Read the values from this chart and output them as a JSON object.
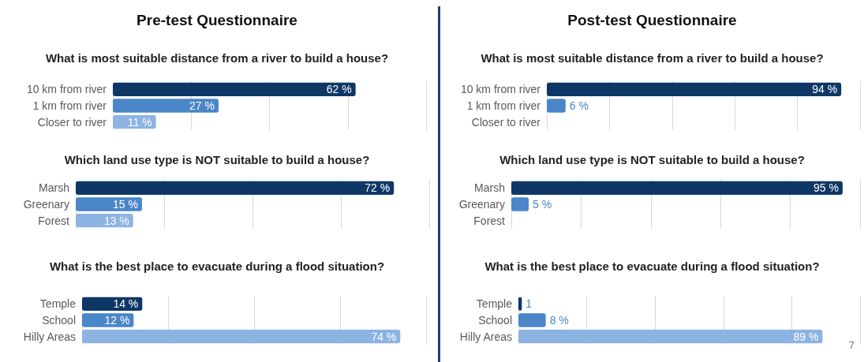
{
  "chart_data": [
    {
      "type": "bar",
      "orientation": "horizontal",
      "title": "Pre-test Questionnaire",
      "subtitle": "What is most suitable distance from a river to build a house?",
      "categories": [
        "10 km from river",
        "1 km from river",
        "Closer to river"
      ],
      "values": [
        62,
        27,
        11
      ],
      "colors": [
        "#0e3766",
        "#4a86c8",
        "#8cb3e2"
      ],
      "value_labels": [
        "62 %",
        "27 %",
        "11 %"
      ],
      "xlim": [
        0,
        80
      ],
      "xticks": [
        {
          "value": 0,
          "label": null
        },
        {
          "value": 20,
          "label": null
        },
        {
          "value": 40,
          "label": null
        },
        {
          "value": 60,
          "label": null
        },
        {
          "value": 80,
          "label": null
        }
      ],
      "grid": "x",
      "tick_labels": "y"
    },
    {
      "type": "bar",
      "orientation": "horizontal",
      "subtitle": "Which land use type is NOT suitable to build a house?",
      "categories": [
        "Marsh",
        "Greenary",
        "Forest"
      ],
      "values": [
        72,
        15,
        13
      ],
      "colors": [
        "#0e3766",
        "#4a86c8",
        "#8cb3e2"
      ],
      "value_labels": [
        "72 %",
        "15 %",
        "13 %"
      ],
      "xlim": [
        0,
        80
      ],
      "xticks": [
        {
          "value": 0,
          "label": null
        },
        {
          "value": 20,
          "label": null
        },
        {
          "value": 40,
          "label": null
        },
        {
          "value": 60,
          "label": null
        },
        {
          "value": 80,
          "label": null
        }
      ],
      "grid": "x",
      "tick_labels": "y"
    },
    {
      "type": "bar",
      "orientation": "horizontal",
      "subtitle": "What is the best place to evacuate during a flood situation?",
      "categories": [
        "Temple",
        "School",
        "Hilly Areas"
      ],
      "values": [
        14,
        12,
        74
      ],
      "colors": [
        "#0e3766",
        "#4a86c8",
        "#8cb3e2"
      ],
      "value_labels": [
        "14 %",
        "12 %",
        "74 %"
      ],
      "xlim": [
        0,
        80
      ],
      "xticks": [
        {
          "value": 0,
          "label": null
        },
        {
          "value": 20,
          "label": null
        },
        {
          "value": 40,
          "label": null
        },
        {
          "value": 60,
          "label": null
        },
        {
          "value": 80,
          "label": null
        }
      ],
      "grid": "x",
      "tick_labels": "y"
    },
    {
      "type": "bar",
      "orientation": "horizontal",
      "title": "Post-test Questionnaire",
      "subtitle": "What is most suitable distance from a river to build a house?",
      "categories": [
        "10 km from river",
        "1 km from river",
        "Closer to river"
      ],
      "values": [
        94,
        6,
        0
      ],
      "colors": [
        "#0e3766",
        "#4a86c8",
        "#8cb3e2"
      ],
      "value_labels": [
        "94 %",
        "6 %",
        null
      ],
      "xlim": [
        0,
        100
      ],
      "xticks": [
        {
          "value": 0,
          "label": null
        },
        {
          "value": 20,
          "label": null
        },
        {
          "value": 40,
          "label": null
        },
        {
          "value": 60,
          "label": null
        },
        {
          "value": 80,
          "label": null
        },
        {
          "value": 100,
          "label": null
        }
      ],
      "grid": "x",
      "tick_labels": "y"
    },
    {
      "type": "bar",
      "orientation": "horizontal",
      "subtitle": "Which land use type is NOT suitable to build a house?",
      "categories": [
        "Marsh",
        "Greenary",
        "Forest"
      ],
      "values": [
        95,
        5,
        0
      ],
      "colors": [
        "#0e3766",
        "#4a86c8",
        "#8cb3e2"
      ],
      "value_labels": [
        "95 %",
        "5 %",
        null
      ],
      "xlim": [
        0,
        100
      ],
      "xticks": [
        {
          "value": 0,
          "label": null
        },
        {
          "value": 20,
          "label": null
        },
        {
          "value": 40,
          "label": null
        },
        {
          "value": 60,
          "label": null
        },
        {
          "value": 80,
          "label": null
        },
        {
          "value": 100,
          "label": null
        }
      ],
      "grid": "x",
      "tick_labels": "y"
    },
    {
      "type": "bar",
      "orientation": "horizontal",
      "subtitle": "What is the best place to evacuate during a flood situation?",
      "categories": [
        "Temple",
        "School",
        "Hilly Areas"
      ],
      "values": [
        1,
        8,
        89
      ],
      "colors": [
        "#0e3766",
        "#4a86c8",
        "#8cb3e2"
      ],
      "value_labels": [
        "1",
        "8 %",
        "89 %"
      ],
      "xlim": [
        0,
        100
      ],
      "xticks": [
        {
          "value": 0,
          "label": null
        },
        {
          "value": 20,
          "label": null
        },
        {
          "value": 40,
          "label": null
        },
        {
          "value": 60,
          "label": null
        },
        {
          "value": 80,
          "label": null
        },
        {
          "value": 100,
          "label": null
        }
      ],
      "grid": "x",
      "tick_labels": "y",
      "annotations": [
        "7"
      ]
    }
  ]
}
